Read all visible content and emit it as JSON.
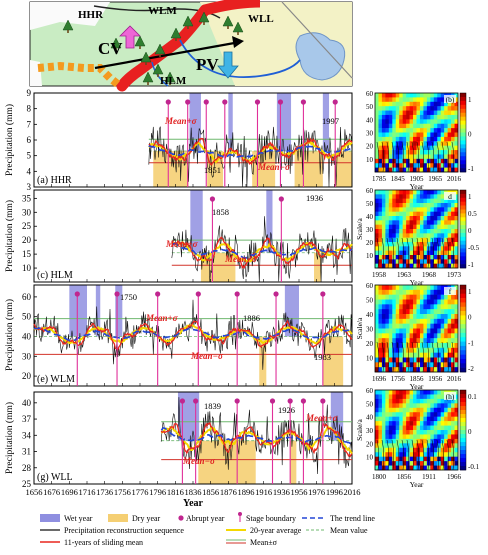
{
  "map": {
    "labels": [
      "HHR",
      "WLM",
      "WLL",
      "HLM"
    ],
    "cv_label": "CV",
    "pv_label": "PV"
  },
  "x_axis": {
    "ticks": [
      "1656",
      "1676",
      "1696",
      "1716",
      "1736",
      "1756",
      "1776",
      "1796",
      "1816",
      "1836",
      "1856",
      "1876",
      "1896",
      "1916",
      "1936",
      "1956",
      "1976",
      "1996",
      "2016"
    ],
    "label": "Year"
  },
  "y_axis_label": "Precipitation (mm)",
  "panels": [
    {
      "id": "a",
      "label": "(a) HHR",
      "yticks": [
        "3",
        "4",
        "5",
        "6",
        "7",
        "8",
        "9"
      ],
      "ymin": 3,
      "ymax": 9,
      "start": 1786,
      "mean": 5.3,
      "sd": 0.75,
      "smooth_base": 5.3,
      "amp": 0.45,
      "period": 42,
      "freq": 6,
      "noise": 1.1,
      "years_marked": [
        "1851",
        "1997"
      ],
      "wet": [
        [
          1832,
          1845
        ],
        [
          1876,
          1881
        ],
        [
          1931,
          1947
        ],
        [
          1983,
          1990
        ]
      ],
      "dry": [
        [
          1791,
          1831
        ],
        [
          1852,
          1870
        ],
        [
          1903,
          1929
        ],
        [
          1951,
          1983
        ],
        [
          1996,
          2016
        ]
      ],
      "abrupt": [
        1808,
        1830,
        1851,
        1872,
        1909,
        1935,
        1961,
        1997
      ],
      "mean_plus_label": "Mean+σ",
      "mean_minus_label": "Mean−σ"
    },
    {
      "id": "c",
      "label": "(c) HLM",
      "yticks": [
        "10",
        "15",
        "20",
        "25",
        "30",
        "35"
      ],
      "ymin": 5,
      "ymax": 38,
      "start": 1812,
      "mean": 15.5,
      "sd": 4.5,
      "smooth_base": 16,
      "amp": 4,
      "period": 48,
      "freq": 5,
      "noise": 5,
      "years_marked": [
        "1858",
        "1936"
      ],
      "wet": [
        [
          1833,
          1847
        ],
        [
          1919,
          1926
        ]
      ],
      "dry": [
        [
          1845,
          1884
        ],
        [
          1973,
          1981
        ]
      ],
      "abrupt": [
        1858,
        1936
      ],
      "mean_plus_label": "Mean+σ",
      "mean_minus_label": "Mean−σ"
    },
    {
      "id": "e",
      "label": "(e) WLM",
      "yticks": [
        "20",
        "30",
        "40",
        "50",
        "60"
      ],
      "ymin": 15,
      "ymax": 66,
      "start": 1656,
      "mean": 40,
      "sd": 9,
      "smooth_base": 41,
      "amp": 5,
      "period": 55,
      "freq": 4,
      "noise": 6,
      "years_marked": [
        "1750",
        "1886",
        "1983"
      ],
      "wet": [
        [
          1696,
          1716
        ],
        [
          1726,
          1731
        ],
        [
          1748,
          1756
        ],
        [
          1940,
          1956
        ]
      ],
      "dry": [
        [
          1911,
          1919
        ],
        [
          1983,
          2006
        ]
      ],
      "abrupt": [
        1705,
        1750,
        1796,
        1842,
        1886,
        1930,
        1983
      ],
      "mean_plus_label": "Mean+σ",
      "mean_minus_label": "Mean−σ"
    },
    {
      "id": "g",
      "label": "(g) WLL",
      "yticks": [
        "25",
        "28",
        "31",
        "34",
        "37",
        "40"
      ],
      "ymin": 25,
      "ymax": 42,
      "start": 1800,
      "mean": 33,
      "sd": 3.5,
      "smooth_base": 33.5,
      "amp": 2.2,
      "period": 45,
      "freq": 5,
      "noise": 2.8,
      "years_marked": [
        "1839",
        "1926"
      ],
      "wet": [
        [
          1819,
          1843
        ],
        [
          1992,
          2006
        ]
      ],
      "dry": [
        [
          1842,
          1907
        ],
        [
          1946,
          1953
        ]
      ],
      "abrupt": [
        1824,
        1839,
        1886,
        1926,
        1946,
        1961,
        1983
      ],
      "mean_plus_label": "Mean+σ",
      "mean_minus_label": "Mean−σ"
    }
  ],
  "wavelets": [
    {
      "id": "b",
      "label": "(b)",
      "ylabel": "",
      "scale_ticks": [
        "10",
        "20",
        "30",
        "40",
        "50",
        "60"
      ],
      "xticks": [
        "1785",
        "1845",
        "1905",
        "1965",
        "2016"
      ],
      "xlabel": "Year",
      "cbar_ticks": [
        "1",
        "0",
        "-1"
      ]
    },
    {
      "id": "d",
      "label": "d",
      "ylabel": "Scale/a",
      "scale_ticks": [
        "10",
        "20",
        "30",
        "40",
        "50",
        "60"
      ],
      "xticks": [
        "1958",
        "1963",
        "1968",
        "1973"
      ],
      "xlabel": "Year",
      "cbar_ticks": [
        "1",
        "0.5",
        "0",
        "-0.5",
        "-1"
      ]
    },
    {
      "id": "f",
      "label": "f",
      "ylabel": "Scale/a",
      "scale_ticks": [
        "10",
        "20",
        "30",
        "40",
        "50",
        "60"
      ],
      "xticks": [
        "1696",
        "1756",
        "1856",
        "1956",
        "2016"
      ],
      "xlabel": "Year",
      "cbar_ticks": [
        "1",
        "0",
        "-1",
        "-2"
      ]
    },
    {
      "id": "h",
      "label": "(h)",
      "ylabel": "Scale/a",
      "scale_ticks": [
        "10",
        "20",
        "30",
        "40",
        "50",
        "60"
      ],
      "xticks": [
        "1800",
        "1856",
        "1911",
        "1966"
      ],
      "xlabel": "Year",
      "cbar_ticks": [
        "0.1",
        "0",
        "-0.1"
      ]
    }
  ],
  "legend": {
    "row1": [
      "Wet year",
      "Dry year",
      "Abrupt year",
      "Stage boundary",
      "The trend line"
    ],
    "row2": [
      "Precipitation reconstruction sequence",
      "20-year average",
      "Mean value"
    ],
    "row3": [
      "11-years of sliding mean",
      "Mean±σ"
    ]
  },
  "colors": {
    "wet": "#8f8fe0",
    "dry": "#f5cf73",
    "raw": "#111111",
    "sliding": "#e8261f",
    "avg20": "#f5d800",
    "trend": "#2346d6",
    "mean": "#6fb86f",
    "sigma": "#d2332a",
    "abrupt": "#c0268f",
    "stage": "#e0309a"
  },
  "chart_data": {
    "type": "line",
    "x_range": [
      1656,
      2016
    ],
    "series": [
      {
        "name": "HHR",
        "start": 1786,
        "y_range": [
          3,
          9
        ]
      },
      {
        "name": "HLM",
        "start": 1812,
        "y_range": [
          5,
          38
        ]
      },
      {
        "name": "WLM",
        "start": 1656,
        "y_range": [
          15,
          66
        ]
      },
      {
        "name": "WLL",
        "start": 1800,
        "y_range": [
          25,
          42
        ]
      }
    ]
  }
}
